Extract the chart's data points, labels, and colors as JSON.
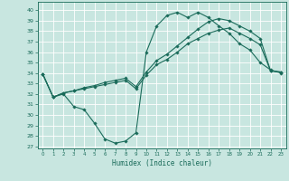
{
  "xlabel": "Humidex (Indice chaleur)",
  "xlim": [
    -0.5,
    23.5
  ],
  "ylim": [
    26.8,
    40.8
  ],
  "yticks": [
    27,
    28,
    29,
    30,
    31,
    32,
    33,
    34,
    35,
    36,
    37,
    38,
    39,
    40
  ],
  "xticks": [
    0,
    1,
    2,
    3,
    4,
    5,
    6,
    7,
    8,
    9,
    10,
    11,
    12,
    13,
    14,
    15,
    16,
    17,
    18,
    19,
    20,
    21,
    22,
    23
  ],
  "bg_color": "#c8e6e0",
  "line_color": "#1a6b5a",
  "grid_color": "#ffffff",
  "lines": [
    {
      "x": [
        0,
        1,
        2,
        3,
        4,
        5,
        6,
        7,
        8,
        9,
        10,
        11,
        12,
        13,
        14,
        15,
        16,
        17,
        18,
        19,
        20,
        21,
        22,
        23
      ],
      "y": [
        33.9,
        31.7,
        32.0,
        30.8,
        30.5,
        29.2,
        27.7,
        27.3,
        27.5,
        28.3,
        36.0,
        38.5,
        39.5,
        39.8,
        39.3,
        39.8,
        39.3,
        38.5,
        37.8,
        36.8,
        36.2,
        35.0,
        34.3,
        34.0
      ]
    },
    {
      "x": [
        0,
        1,
        2,
        3,
        4,
        5,
        6,
        7,
        8,
        9,
        10,
        11,
        12,
        13,
        14,
        15,
        16,
        17,
        18,
        19,
        20,
        21,
        22,
        23
      ],
      "y": [
        33.9,
        31.7,
        32.1,
        32.3,
        32.5,
        32.7,
        32.9,
        33.1,
        33.3,
        32.5,
        33.8,
        34.8,
        35.3,
        36.0,
        36.8,
        37.3,
        37.8,
        38.1,
        38.3,
        37.8,
        37.3,
        36.7,
        34.2,
        34.1
      ]
    },
    {
      "x": [
        0,
        1,
        2,
        3,
        4,
        5,
        6,
        7,
        8,
        9,
        10,
        11,
        12,
        13,
        14,
        15,
        16,
        17,
        18,
        19,
        20,
        21,
        22,
        23
      ],
      "y": [
        33.9,
        31.7,
        32.1,
        32.3,
        32.6,
        32.8,
        33.1,
        33.3,
        33.5,
        32.7,
        34.1,
        35.2,
        35.8,
        36.6,
        37.4,
        38.2,
        38.9,
        39.2,
        39.0,
        38.5,
        38.0,
        37.3,
        34.2,
        34.1
      ]
    }
  ]
}
